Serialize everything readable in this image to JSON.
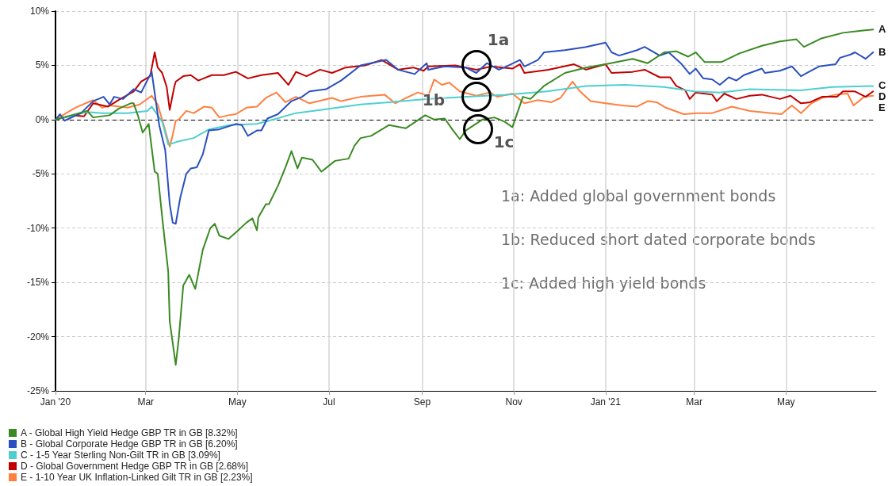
{
  "chart_data": {
    "type": "line",
    "xlim": [
      "2020-01-01",
      "2021-06-30"
    ],
    "xticks": [
      {
        "value": "2020-01-01",
        "label": "Jan '20"
      },
      {
        "value": "2020-03-01",
        "label": "Mar"
      },
      {
        "value": "2020-05-01",
        "label": "May"
      },
      {
        "value": "2020-07-01",
        "label": "Jul"
      },
      {
        "value": "2020-09-01",
        "label": "Sep"
      },
      {
        "value": "2020-11-01",
        "label": "Nov"
      },
      {
        "value": "2021-01-01",
        "label": "Jan '21"
      },
      {
        "value": "2021-03-01",
        "label": "Mar"
      },
      {
        "value": "2021-05-01",
        "label": "May"
      }
    ],
    "ylim": [
      -25,
      10
    ],
    "yticks": [
      {
        "value": 10,
        "label": "10%"
      },
      {
        "value": 5,
        "label": "5%"
      },
      {
        "value": 0,
        "label": "0%"
      },
      {
        "value": -5,
        "label": "-5%"
      },
      {
        "value": -10,
        "label": "-10%"
      },
      {
        "value": -15,
        "label": "-15%"
      },
      {
        "value": -20,
        "label": "-20%"
      },
      {
        "value": -25,
        "label": "-25%"
      }
    ],
    "grid": true,
    "legend": "bottom left",
    "marker": "none",
    "line_style": "solid",
    "ref_lines": [
      {
        "axis": "y",
        "value": 0,
        "color": "#000000",
        "line_style": "dashed"
      }
    ],
    "series": [
      {
        "name": "A - Global High Yield Hedge GBP TR in GB [8.32%]",
        "color": "#3a8a23",
        "x": [
          "2020-01-01",
          "2020-01-22",
          "2020-01-26",
          "2020-02-06",
          "2020-02-12",
          "2020-02-20",
          "2020-02-22",
          "2020-02-25",
          "2020-02-28",
          "2020-03-03",
          "2020-03-07",
          "2020-03-09",
          "2020-03-12",
          "2020-03-16",
          "2020-03-17",
          "2020-03-21",
          "2020-03-23",
          "2020-03-26",
          "2020-03-30",
          "2020-04-03",
          "2020-04-08",
          "2020-04-13",
          "2020-04-16",
          "2020-04-19",
          "2020-04-25",
          "2020-04-30",
          "2020-05-07",
          "2020-05-11",
          "2020-05-14",
          "2020-05-15",
          "2020-05-20",
          "2020-05-22",
          "2020-05-28",
          "2020-06-02",
          "2020-06-06",
          "2020-06-10",
          "2020-06-13",
          "2020-06-20",
          "2020-06-26",
          "2020-07-05",
          "2020-07-14",
          "2020-07-18",
          "2020-07-22",
          "2020-07-29",
          "2020-08-10",
          "2020-08-21",
          "2020-09-03",
          "2020-09-09",
          "2020-09-16",
          "2020-09-21",
          "2020-09-26",
          "2020-09-30",
          "2020-10-11",
          "2020-10-19",
          "2020-10-26",
          "2020-10-31",
          "2020-11-07",
          "2020-11-12",
          "2020-11-21",
          "2020-12-05",
          "2020-12-19",
          "2021-01-01",
          "2021-01-19",
          "2021-01-29",
          "2021-02-09",
          "2021-02-17",
          "2021-02-25",
          "2021-03-02",
          "2021-03-08",
          "2021-03-19",
          "2021-03-31",
          "2021-04-15",
          "2021-04-27",
          "2021-05-08",
          "2021-05-13",
          "2021-05-25",
          "2021-06-08",
          "2021-06-20",
          "2021-06-28"
        ],
        "values": [
          0,
          0.8,
          0.2,
          0.4,
          1.0,
          1.5,
          1.5,
          0.3,
          -1.2,
          -0.4,
          -4.8,
          -5,
          -9,
          -14,
          -18.6,
          -22.6,
          -20.2,
          -15.3,
          -14.3,
          -15.6,
          -12,
          -10,
          -9.6,
          -10.7,
          -11,
          -10.4,
          -9.5,
          -9.1,
          -10.2,
          -9,
          -7.8,
          -7.8,
          -6.1,
          -4.4,
          -2.9,
          -4.5,
          -3.5,
          -3.7,
          -4.8,
          -3.8,
          -3.6,
          -2.4,
          -1.7,
          -1.5,
          -0.5,
          -0.8,
          0.4,
          0,
          0.1,
          -0.9,
          -1.8,
          -1.0,
          0,
          0.2,
          -0.2,
          -0.7,
          2.1,
          1.9,
          3.1,
          4.3,
          4.8,
          5.1,
          5.6,
          5.2,
          6.2,
          6.3,
          5.8,
          6.2,
          5.3,
          5.3,
          6.1,
          6.8,
          7.2,
          7.4,
          6.7,
          7.5,
          8.0,
          8.2,
          8.3
        ]
      },
      {
        "name": "B - Global Corporate Hedge GBP TR in GB [6.20%]",
        "color": "#2a4fbf",
        "x": [
          "2020-01-01",
          "2020-01-04",
          "2020-01-07",
          "2020-01-18",
          "2020-01-26",
          "2020-02-02",
          "2020-02-06",
          "2020-02-09",
          "2020-02-15",
          "2020-02-22",
          "2020-02-27",
          "2020-03-05",
          "2020-03-10",
          "2020-03-14",
          "2020-03-17",
          "2020-03-19",
          "2020-03-21",
          "2020-03-24",
          "2020-03-28",
          "2020-03-31",
          "2020-04-04",
          "2020-04-08",
          "2020-04-12",
          "2020-04-19",
          "2020-04-30",
          "2020-05-04",
          "2020-05-08",
          "2020-05-14",
          "2020-05-17",
          "2020-05-21",
          "2020-05-28",
          "2020-06-06",
          "2020-06-13",
          "2020-06-18",
          "2020-06-29",
          "2020-07-09",
          "2020-07-22",
          "2020-08-08",
          "2020-08-16",
          "2020-08-27",
          "2020-09-04",
          "2020-09-05",
          "2020-09-16",
          "2020-09-30",
          "2020-10-07",
          "2020-10-14",
          "2020-10-22",
          "2020-10-27",
          "2020-11-05",
          "2020-11-08",
          "2020-11-17",
          "2020-11-21",
          "2020-12-05",
          "2020-12-19",
          "2021-01-01",
          "2021-01-05",
          "2021-01-10",
          "2021-01-22",
          "2021-01-27",
          "2021-02-06",
          "2021-02-12",
          "2021-02-20",
          "2021-02-26",
          "2021-03-02",
          "2021-03-07",
          "2021-03-13",
          "2021-03-18",
          "2021-03-24",
          "2021-03-29",
          "2021-04-03",
          "2021-04-15",
          "2021-04-17",
          "2021-04-27",
          "2021-05-05",
          "2021-05-11",
          "2021-05-23",
          "2021-06-03",
          "2021-06-06",
          "2021-06-13",
          "2021-06-16",
          "2021-06-23",
          "2021-06-28"
        ],
        "values": [
          0,
          0.5,
          -0.1,
          0.6,
          1.7,
          2.1,
          1.4,
          2.1,
          1.9,
          2.8,
          2.5,
          4.4,
          -0.5,
          -2.8,
          -7.8,
          -9.5,
          -9.6,
          -7.2,
          -5.0,
          -4.5,
          -4.4,
          -3.2,
          -1.0,
          -0.9,
          -0.4,
          -0.5,
          -1.5,
          -1.0,
          -1.0,
          0.1,
          0.5,
          1.7,
          2.1,
          2.6,
          2.8,
          3.6,
          5.0,
          5.5,
          4.6,
          4.2,
          5.2,
          4.6,
          4.9,
          4.8,
          4.3,
          5.2,
          4.6,
          4.9,
          5.5,
          4.9,
          5.5,
          6.2,
          6.4,
          6.7,
          7.1,
          6.2,
          5.9,
          6.4,
          6.7,
          5.9,
          6.2,
          5.2,
          4.2,
          4.7,
          3.8,
          3.7,
          3.2,
          3.9,
          3.6,
          4.1,
          4.7,
          4.3,
          4.5,
          4.9,
          4.0,
          4.9,
          5.1,
          5.7,
          6.0,
          6.2,
          5.6,
          6.2
        ]
      },
      {
        "name": "C - 1-5 Year Sterling Non-Gilt TR in GB [3.09%]",
        "color": "#4ecfcf",
        "x": [
          "2020-01-01",
          "2020-01-22",
          "2020-02-01",
          "2020-02-18",
          "2020-03-02",
          "2020-03-05",
          "2020-03-12",
          "2020-03-16",
          "2020-03-23",
          "2020-04-02",
          "2020-04-12",
          "2020-04-26",
          "2020-05-14",
          "2020-05-22",
          "2020-06-09",
          "2020-06-26",
          "2020-07-22",
          "2020-08-10",
          "2020-09-05",
          "2020-10-01",
          "2020-10-27",
          "2020-11-23",
          "2020-12-19",
          "2021-01-14",
          "2021-02-09",
          "2021-03-01",
          "2021-03-18",
          "2021-04-07",
          "2021-05-11",
          "2021-06-01",
          "2021-06-28"
        ],
        "values": [
          0,
          0.7,
          0.6,
          0.6,
          0.8,
          1.2,
          -0.2,
          -2.3,
          -2.0,
          -1.7,
          -0.9,
          -0.5,
          -0.4,
          -0.1,
          0.6,
          0.9,
          1.4,
          1.6,
          1.9,
          2.1,
          2.3,
          2.6,
          3.1,
          3.2,
          3.0,
          2.6,
          2.5,
          2.8,
          2.7,
          3.0,
          3.1
        ]
      },
      {
        "name": "D - Global Government Hedge GBP TR in GB [2.68%]",
        "color": "#c00000",
        "x": [
          "2020-01-01",
          "2020-01-13",
          "2020-01-20",
          "2020-01-26",
          "2020-02-05",
          "2020-02-12",
          "2020-02-22",
          "2020-02-27",
          "2020-03-04",
          "2020-03-07",
          "2020-03-09",
          "2020-03-12",
          "2020-03-15",
          "2020-03-17",
          "2020-03-20",
          "2020-03-21",
          "2020-03-26",
          "2020-03-31",
          "2020-04-05",
          "2020-04-14",
          "2020-04-22",
          "2020-04-30",
          "2020-05-08",
          "2020-05-17",
          "2020-05-28",
          "2020-06-04",
          "2020-06-09",
          "2020-06-16",
          "2020-06-25",
          "2020-07-03",
          "2020-07-12",
          "2020-07-25",
          "2020-08-05",
          "2020-08-16",
          "2020-08-26",
          "2020-09-02",
          "2020-09-05",
          "2020-09-23",
          "2020-10-07",
          "2020-10-17",
          "2020-10-31",
          "2020-11-05",
          "2020-11-08",
          "2020-11-24",
          "2020-12-11",
          "2020-12-19",
          "2021-01-01",
          "2021-01-05",
          "2021-01-19",
          "2021-01-27",
          "2021-02-06",
          "2021-02-13",
          "2021-02-17",
          "2021-02-23",
          "2021-02-26",
          "2021-03-02",
          "2021-03-13",
          "2021-03-16",
          "2021-03-21",
          "2021-03-29",
          "2021-04-07",
          "2021-04-15",
          "2021-04-27",
          "2021-05-04",
          "2021-05-11",
          "2021-05-17",
          "2021-05-25",
          "2021-06-04",
          "2021-06-08",
          "2021-06-16",
          "2021-06-23",
          "2021-06-28"
        ],
        "values": [
          0,
          0.4,
          0.3,
          1.5,
          1.2,
          1.8,
          2.6,
          3.5,
          4.0,
          6.2,
          4.8,
          4.3,
          3.0,
          0.9,
          3.0,
          3.5,
          4.0,
          4.1,
          3.6,
          4.1,
          4.1,
          4.4,
          3.8,
          4.1,
          4.3,
          3.2,
          4.4,
          4.0,
          4.6,
          4.3,
          4.8,
          5.0,
          5.5,
          4.6,
          4.8,
          4.5,
          4.9,
          5.0,
          4.6,
          4.9,
          4.7,
          5.1,
          4.3,
          4.6,
          5.1,
          4.6,
          5.1,
          4.3,
          4.4,
          4.6,
          3.9,
          3.9,
          3.1,
          2.7,
          1.9,
          2.5,
          2.3,
          1.7,
          2.4,
          1.9,
          2.2,
          2.3,
          1.9,
          2.2,
          1.5,
          1.6,
          2.1,
          2.1,
          2.6,
          2.6,
          2.1,
          2.6
        ]
      },
      {
        "name": "E - 1-10 Year UK Inflation-Linked Gilt TR in GB [2.23%]",
        "color": "#ff7f3f",
        "x": [
          "2020-01-01",
          "2020-01-13",
          "2020-01-16",
          "2020-01-26",
          "2020-02-01",
          "2020-02-06",
          "2020-02-18",
          "2020-02-26",
          "2020-03-05",
          "2020-03-09",
          "2020-03-13",
          "2020-03-17",
          "2020-03-19",
          "2020-03-21",
          "2020-03-23",
          "2020-03-28",
          "2020-04-02",
          "2020-04-09",
          "2020-04-14",
          "2020-04-19",
          "2020-04-25",
          "2020-04-30",
          "2020-05-07",
          "2020-05-14",
          "2020-05-20",
          "2020-05-27",
          "2020-06-02",
          "2020-06-09",
          "2020-06-18",
          "2020-07-03",
          "2020-07-09",
          "2020-07-22",
          "2020-08-07",
          "2020-08-14",
          "2020-08-29",
          "2020-09-05",
          "2020-09-09",
          "2020-09-14",
          "2020-09-19",
          "2020-09-26",
          "2020-10-07",
          "2020-10-16",
          "2020-10-21",
          "2020-10-31",
          "2020-11-08",
          "2020-11-17",
          "2020-11-26",
          "2020-12-02",
          "2020-12-10",
          "2020-12-15",
          "2020-12-22",
          "2021-01-01",
          "2021-01-12",
          "2021-01-22",
          "2021-01-29",
          "2021-02-04",
          "2021-02-10",
          "2021-02-22",
          "2021-03-03",
          "2021-03-13",
          "2021-03-26",
          "2021-04-07",
          "2021-04-28",
          "2021-05-05",
          "2021-05-11",
          "2021-05-18",
          "2021-05-25",
          "2021-06-03",
          "2021-06-11",
          "2021-06-15",
          "2021-06-22",
          "2021-06-28"
        ],
        "values": [
          0,
          1.0,
          1.2,
          1.8,
          1.1,
          1.3,
          1.1,
          1.4,
          2.2,
          1.4,
          -0.5,
          -2.5,
          -1.4,
          -0.1,
          0.0,
          0.8,
          0.6,
          1.2,
          1.1,
          0.2,
          0.4,
          0.5,
          1.1,
          1.2,
          2.0,
          2.5,
          1.6,
          2.1,
          1.5,
          2.0,
          1.7,
          2.1,
          2.3,
          1.5,
          2.5,
          2.2,
          3.7,
          3.2,
          3.4,
          2.6,
          2.2,
          2.5,
          2.1,
          2.4,
          1.5,
          1.8,
          1.6,
          2.0,
          3.5,
          2.6,
          1.7,
          1.5,
          1.3,
          1.2,
          1.7,
          1.6,
          1.1,
          0.5,
          0.6,
          0.6,
          1.2,
          0.8,
          0.5,
          1.3,
          0.6,
          1.5,
          2.0,
          2.3,
          2.4,
          1.3,
          2.1,
          2.2
        ]
      }
    ],
    "annotations": [
      {
        "text": "A",
        "x": "2021-06-30",
        "y": 8.3
      },
      {
        "text": "B",
        "x": "2021-06-30",
        "y": 6.2
      },
      {
        "text": "C",
        "x": "2021-06-30",
        "y": 3.1
      },
      {
        "text": "D",
        "x": "2021-06-30",
        "y": 2.6
      },
      {
        "text": "E",
        "x": "2021-06-30",
        "y": 2.2
      },
      {
        "text": "1a",
        "x": "2020-10-07",
        "y": 5
      },
      {
        "text": "1b",
        "x": "2020-10-07",
        "y": 2.1
      },
      {
        "text": "1c",
        "x": "2020-10-08",
        "y": -0.9
      },
      "1a: Added global government bonds",
      "1b: Reduced short dated corporate bonds",
      "1c: Added high yield bonds"
    ]
  }
}
